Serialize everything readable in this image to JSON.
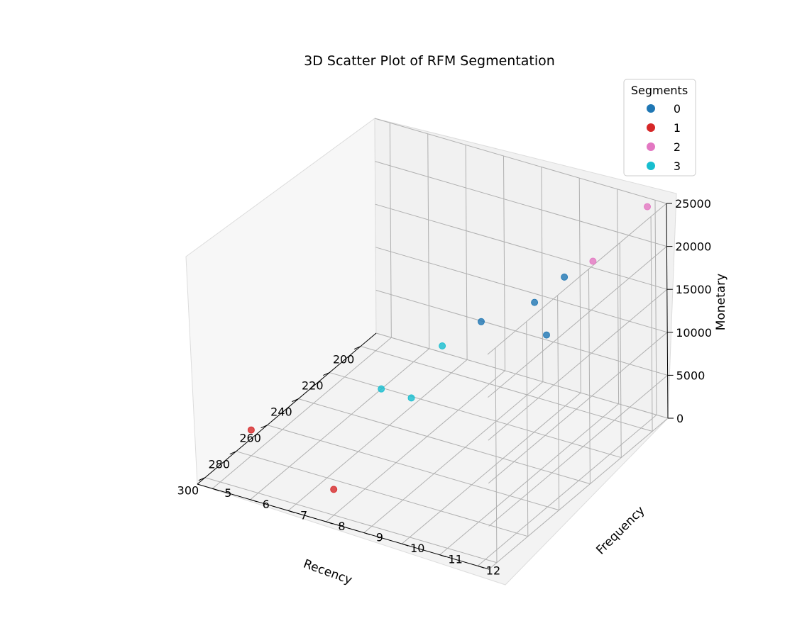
{
  "chart_data": {
    "type": "scatter",
    "title": "3D Scatter Plot of RFM Segmentation",
    "xlabel": "Recency",
    "ylabel": "Frequency",
    "zlabel": "Monetary",
    "xlim": [
      190,
      305
    ],
    "ylim": [
      4.6,
      12.3
    ],
    "zlim": [
      0,
      25000
    ],
    "x_ticks": [
      200,
      220,
      240,
      260,
      280,
      300
    ],
    "y_ticks": [
      5,
      6,
      7,
      8,
      9,
      10,
      11,
      12
    ],
    "z_ticks": [
      0,
      5000,
      10000,
      15000,
      20000,
      25000
    ],
    "grid": true,
    "legend": {
      "title": "Segments",
      "placement": "top-right",
      "entries": [
        {
          "label": "0",
          "color": "#1f77b4"
        },
        {
          "label": "1",
          "color": "#d62728"
        },
        {
          "label": "2",
          "color": "#e377c2"
        },
        {
          "label": "3",
          "color": "#17becf"
        }
      ]
    },
    "series": [
      {
        "name": "0",
        "color": "#1f77b4",
        "points": [
          {
            "x": 200,
            "y": 10,
            "z": 15000
          },
          {
            "x": 195,
            "y": 9,
            "z": 10000
          },
          {
            "x": 205,
            "y": 8,
            "z": 8000
          },
          {
            "x": 260,
            "y": 12,
            "z": 20000
          }
        ]
      },
      {
        "name": "1",
        "color": "#d62728",
        "points": [
          {
            "x": 280,
            "y": 5,
            "z": 3000
          },
          {
            "x": 300,
            "y": 8,
            "z": 3000
          }
        ]
      },
      {
        "name": "2",
        "color": "#e377c2",
        "points": [
          {
            "x": 195,
            "y": 12,
            "z": 25000
          },
          {
            "x": 230,
            "y": 12,
            "z": 24000
          }
        ]
      },
      {
        "name": "3",
        "color": "#17becf",
        "points": [
          {
            "x": 230,
            "y": 8,
            "z": 9000
          },
          {
            "x": 250,
            "y": 8,
            "z": 6000
          },
          {
            "x": 245,
            "y": 7,
            "z": 5000
          }
        ]
      }
    ]
  }
}
